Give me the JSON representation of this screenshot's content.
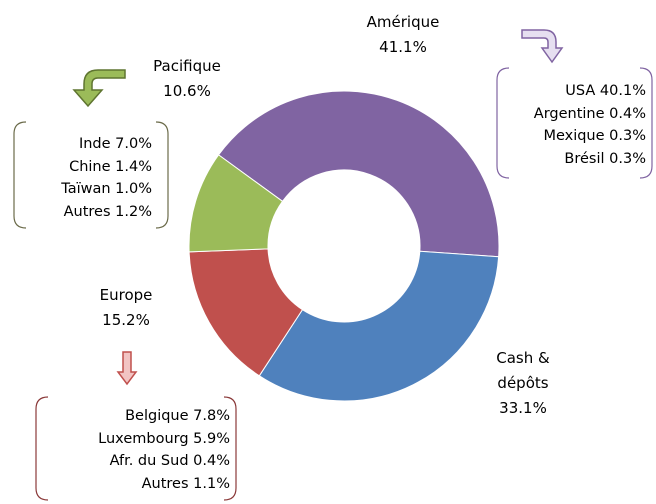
{
  "chart_data": {
    "type": "pie",
    "categories": [
      "Amérique",
      "Cash & dépôts",
      "Europe",
      "Pacifique"
    ],
    "values": [
      41.1,
      33.1,
      15.2,
      10.6
    ],
    "value_labels": [
      "41.1%",
      "33.1%",
      "15.2%",
      "10.6%"
    ],
    "colors": [
      "#8064a2",
      "#4f81bd",
      "#c0504d",
      "#9bbb59"
    ],
    "breakdowns": [
      {
        "items": [
          "USA",
          "Argentine",
          "Mexique",
          "Brésil"
        ],
        "values": [
          40.1,
          0.4,
          0.3,
          0.3
        ],
        "value_labels": [
          "40.1%",
          "0.4%",
          "0.3%",
          "0.3%"
        ]
      },
      {
        "items": [
          "Belgique",
          "Luxembourg",
          "Afr. du Sud",
          "Autres"
        ],
        "values": [
          7.8,
          5.9,
          0.4,
          1.1
        ],
        "value_labels": [
          "7.8%",
          "5.9%",
          "0.4%",
          "1.1%"
        ]
      },
      {
        "items": [
          "Inde",
          "Chine",
          "Taïwan",
          "Autres"
        ],
        "values": [
          7.0,
          1.4,
          1.0,
          1.2
        ],
        "value_labels": [
          "7.0%",
          "1.4%",
          "1.0%",
          "1.2%"
        ]
      }
    ]
  }
}
